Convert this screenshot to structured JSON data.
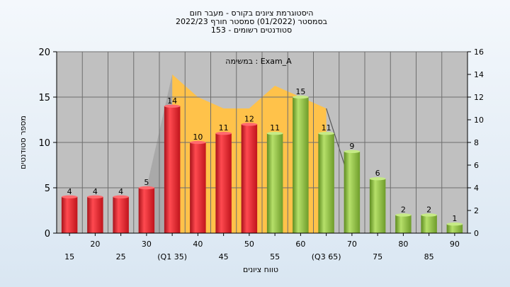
{
  "chart_data": {
    "type": "bar",
    "title_lines": [
      "היסטוגרמת ציונים בקורס - מעבר חום",
      "בסמסטר  (01/2022)  סמסטר חורף 2022/23",
      "סטודנטים רשומים - 153"
    ],
    "annotation": "במשימה : Exam_A",
    "xlabel": "טווח ציונים",
    "ylabel": "מספר סטודנטים",
    "categories": [
      "15",
      "20",
      "25",
      "30",
      "(Q1 35)",
      "40",
      "45",
      "50",
      "55",
      "60",
      "(Q3 65)",
      "70",
      "75",
      "80",
      "85",
      "90"
    ],
    "values": [
      4,
      4,
      4,
      5,
      14,
      10,
      11,
      12,
      11,
      15,
      11,
      9,
      6,
      2,
      2,
      1
    ],
    "bar_colors": [
      "red",
      "red",
      "red",
      "red",
      "red",
      "red",
      "red",
      "red",
      "green",
      "green",
      "green",
      "green",
      "green",
      "green",
      "green",
      "green"
    ],
    "ylim_left": [
      0,
      20
    ],
    "yticks_left": [
      0,
      5,
      10,
      15,
      20
    ],
    "ylim_right": [
      0,
      16
    ],
    "yticks_right": [
      0,
      2,
      4,
      6,
      8,
      10,
      12,
      14,
      16
    ],
    "area_series": {
      "values": [
        14,
        12,
        11,
        11,
        13,
        12,
        11
      ],
      "start_category_index": 4
    },
    "trend_line_end": {
      "category_index": 11,
      "value": 4
    },
    "grid": true,
    "colors": {
      "plot_bg": "#c0c0c0",
      "red_bar": "#e8242c",
      "green_bar": "#8cc43c",
      "area": "#ffc24a",
      "grid": "#6e6e6e"
    }
  }
}
